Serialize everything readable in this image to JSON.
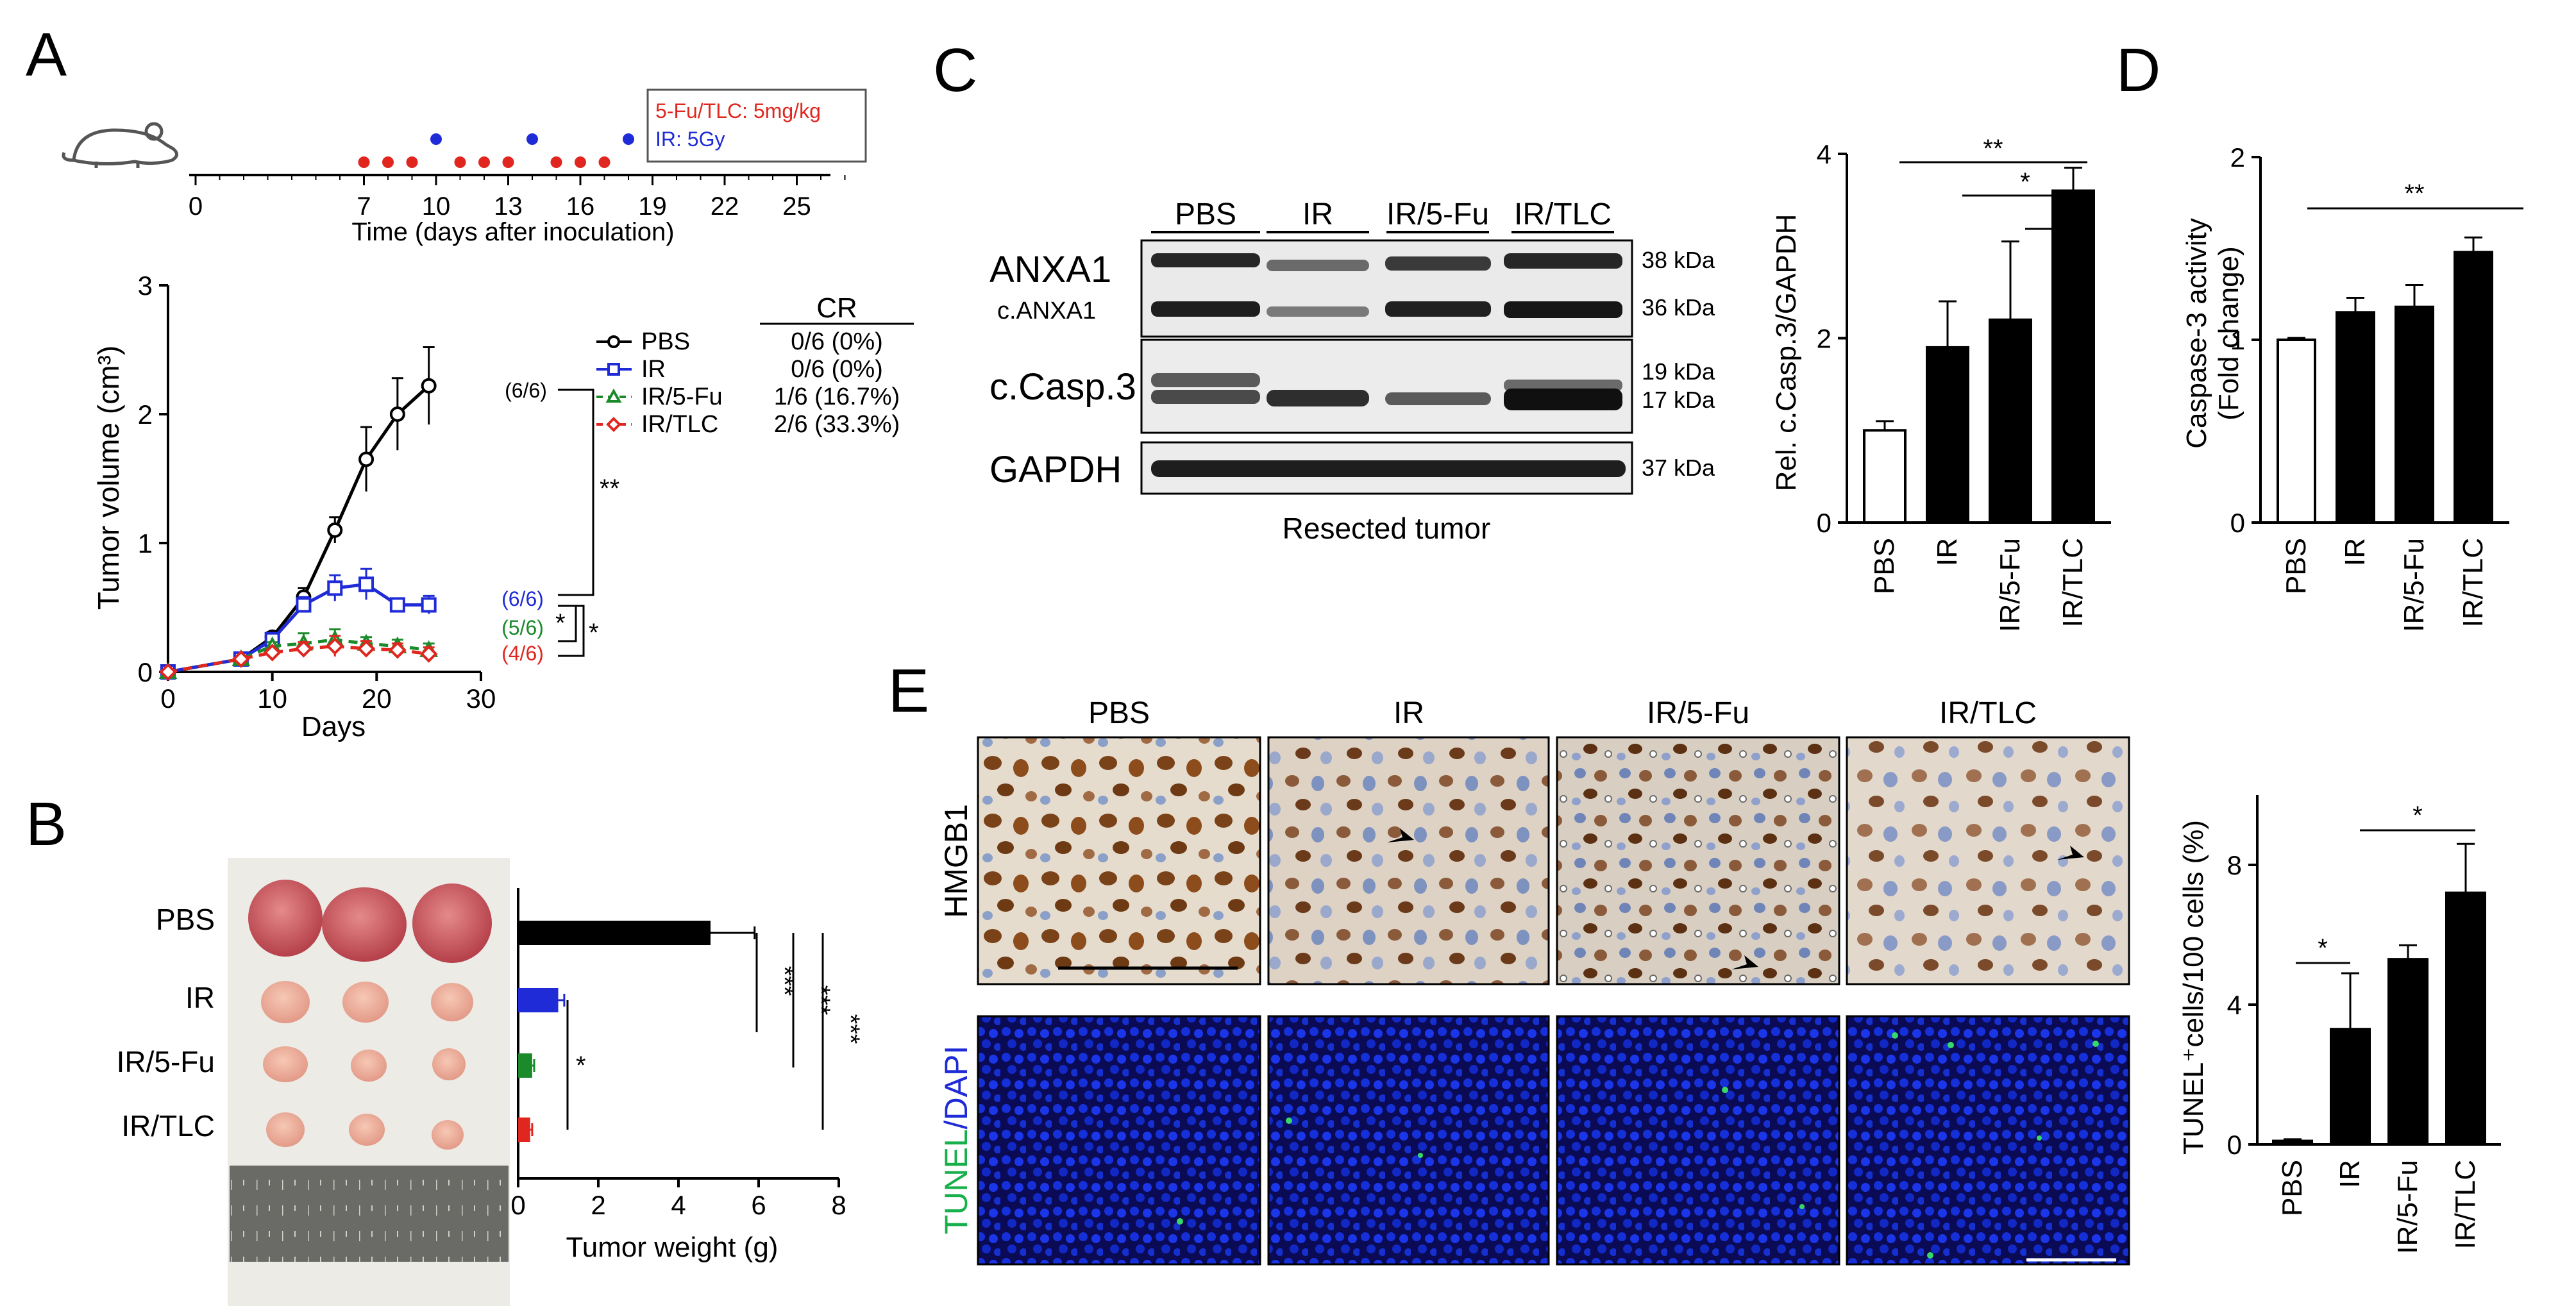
{
  "panels": {
    "A": "A",
    "B": "B",
    "C": "C",
    "D": "D",
    "E": "E"
  },
  "colors": {
    "pbs": "#000000",
    "ir": "#1f2bd6",
    "ir5fu": "#1a8a2a",
    "irtlc": "#e0261f"
  },
  "panel_a": {
    "timeline": {
      "legend_drug": "5-Fu/TLC: 5mg/kg",
      "legend_ir": "IR: 5Gy",
      "ticks": [
        "0",
        "7",
        "10",
        "13",
        "16",
        "19",
        "22",
        "25"
      ],
      "xlabel": "Time (days after inoculation)",
      "drug_days": [
        7,
        8,
        9,
        11,
        12,
        13,
        15,
        16,
        17
      ],
      "ir_days": [
        10,
        14,
        18
      ]
    },
    "cr_header": "CR",
    "legend": [
      {
        "name": "PBS",
        "cr": "0/6 (0%)",
        "end": "(6/6)"
      },
      {
        "name": "IR",
        "cr": "0/6 (0%)",
        "end": "(6/6)"
      },
      {
        "name": "IR/5-Fu",
        "cr": "1/6 (16.7%)",
        "end": "(5/6)"
      },
      {
        "name": "IR/TLC",
        "cr": "2/6 (33.3%)",
        "end": "(4/6)"
      }
    ],
    "sig": [
      "**",
      "*",
      "*"
    ],
    "ylabel": "Tumor volume (cm³)",
    "xlabel": "Days"
  },
  "panel_b": {
    "rows": [
      "PBS",
      "IR",
      "IR/5-Fu",
      "IR/TLC"
    ],
    "xlabel": "Tumor weight (g)",
    "sig": [
      "***",
      "***",
      "***",
      "*"
    ]
  },
  "panel_c": {
    "lanes": [
      "PBS",
      "IR",
      "IR/5-Fu",
      "IR/TLC"
    ],
    "bands": [
      "ANXA1",
      "c.ANXA1",
      "c.Casp.3",
      "GAPDH"
    ],
    "kda": [
      "38 kDa",
      "36 kDa",
      "19 kDa",
      "17 kDa",
      "37 kDa"
    ],
    "caption": "Resected tumor",
    "sig": [
      "**",
      "*",
      "*"
    ]
  },
  "panel_d": {
    "sig": [
      "**"
    ]
  },
  "panel_e": {
    "cols": [
      "PBS",
      "IR",
      "IR/5-Fu",
      "IR/TLC"
    ],
    "row1": "HMGB1",
    "row2_a": "TUNEL",
    "row2_b": "/DAPI",
    "sig": [
      "*",
      "*"
    ]
  },
  "chart_data": [
    {
      "type": "line",
      "ylabel": "Tumor volume (cm³)",
      "xlabel": "Days",
      "xlim": [
        0,
        30
      ],
      "ylim": [
        0,
        3
      ],
      "xticks": [
        0,
        10,
        20,
        30
      ],
      "yticks": [
        0,
        1,
        2,
        3
      ],
      "series": [
        {
          "name": "PBS",
          "color": "#000000",
          "x": [
            0,
            7,
            10,
            13,
            16,
            19,
            22,
            25
          ],
          "y": [
            0,
            0.1,
            0.27,
            0.58,
            1.1,
            1.65,
            2.0,
            2.22
          ],
          "err": [
            0,
            0.02,
            0.04,
            0.07,
            0.1,
            0.25,
            0.28,
            0.3
          ]
        },
        {
          "name": "IR",
          "color": "#1f2bd6",
          "x": [
            0,
            7,
            10,
            13,
            16,
            19,
            22,
            25
          ],
          "y": [
            0,
            0.1,
            0.25,
            0.52,
            0.65,
            0.68,
            0.52,
            0.52
          ],
          "err": [
            0,
            0.02,
            0.04,
            0.06,
            0.1,
            0.12,
            0.05,
            0.07
          ]
        },
        {
          "name": "IR/5-Fu",
          "color": "#1a8a2a",
          "x": [
            0,
            7,
            10,
            13,
            16,
            19,
            22,
            25
          ],
          "y": [
            0,
            0.1,
            0.2,
            0.22,
            0.25,
            0.22,
            0.2,
            0.17
          ],
          "err": [
            0,
            0.02,
            0.03,
            0.08,
            0.08,
            0.05,
            0.05,
            0.05
          ]
        },
        {
          "name": "IR/TLC",
          "color": "#e0261f",
          "x": [
            0,
            7,
            10,
            13,
            16,
            19,
            22,
            25
          ],
          "y": [
            0,
            0.1,
            0.15,
            0.18,
            0.2,
            0.18,
            0.17,
            0.14
          ],
          "err": [
            0,
            0.02,
            0.03,
            0.05,
            0.08,
            0.06,
            0.05,
            0.05
          ]
        }
      ]
    },
    {
      "type": "bar",
      "xlabel": "Tumor weight (g)",
      "xlim": [
        0,
        8
      ],
      "xticks": [
        0,
        2,
        4,
        6,
        8
      ],
      "categories": [
        "PBS",
        "IR",
        "IR/5-Fu",
        "IR/TLC"
      ],
      "values": [
        4.8,
        1.0,
        0.35,
        0.3
      ],
      "err": [
        1.1,
        0.15,
        0.05,
        0.05
      ],
      "colors": [
        "#000000",
        "#1f2bd6",
        "#1a8a2a",
        "#e0261f"
      ]
    },
    {
      "type": "bar",
      "ylabel": "Rel. c.Casp.3/GAPDH",
      "ylim": [
        0,
        4
      ],
      "yticks": [
        0,
        2,
        4
      ],
      "categories": [
        "PBS",
        "IR",
        "IR/5-Fu",
        "IR/TLC"
      ],
      "values": [
        1.0,
        1.9,
        2.2,
        3.6
      ],
      "err": [
        0.1,
        0.5,
        0.85,
        0.25
      ],
      "colors": [
        "#ffffff",
        "#000000",
        "#000000",
        "#000000"
      ]
    },
    {
      "type": "bar",
      "ylabel": "Caspase-3 activity (Fold change)",
      "ylabel_lines": [
        "Caspase-3 activity",
        "(Fold change)"
      ],
      "ylim": [
        0,
        2
      ],
      "yticks": [
        0,
        1,
        2
      ],
      "categories": [
        "PBS",
        "IR",
        "IR/5-Fu",
        "IR/TLC"
      ],
      "values": [
        1.0,
        1.15,
        1.18,
        1.48
      ],
      "err": [
        0.01,
        0.08,
        0.12,
        0.08
      ],
      "colors": [
        "#ffffff",
        "#000000",
        "#000000",
        "#000000"
      ]
    },
    {
      "type": "bar",
      "ylabel": "TUNEL⁺cells/100 cells (%)",
      "ylim": [
        0,
        10
      ],
      "yticks": [
        0,
        4,
        8
      ],
      "categories": [
        "PBS",
        "IR",
        "IR/5-Fu",
        "IR/TLC"
      ],
      "values": [
        0.1,
        3.3,
        5.3,
        7.2
      ],
      "err": [
        0.05,
        1.6,
        0.4,
        1.4
      ],
      "colors": [
        "#000000",
        "#000000",
        "#000000",
        "#000000"
      ]
    }
  ]
}
